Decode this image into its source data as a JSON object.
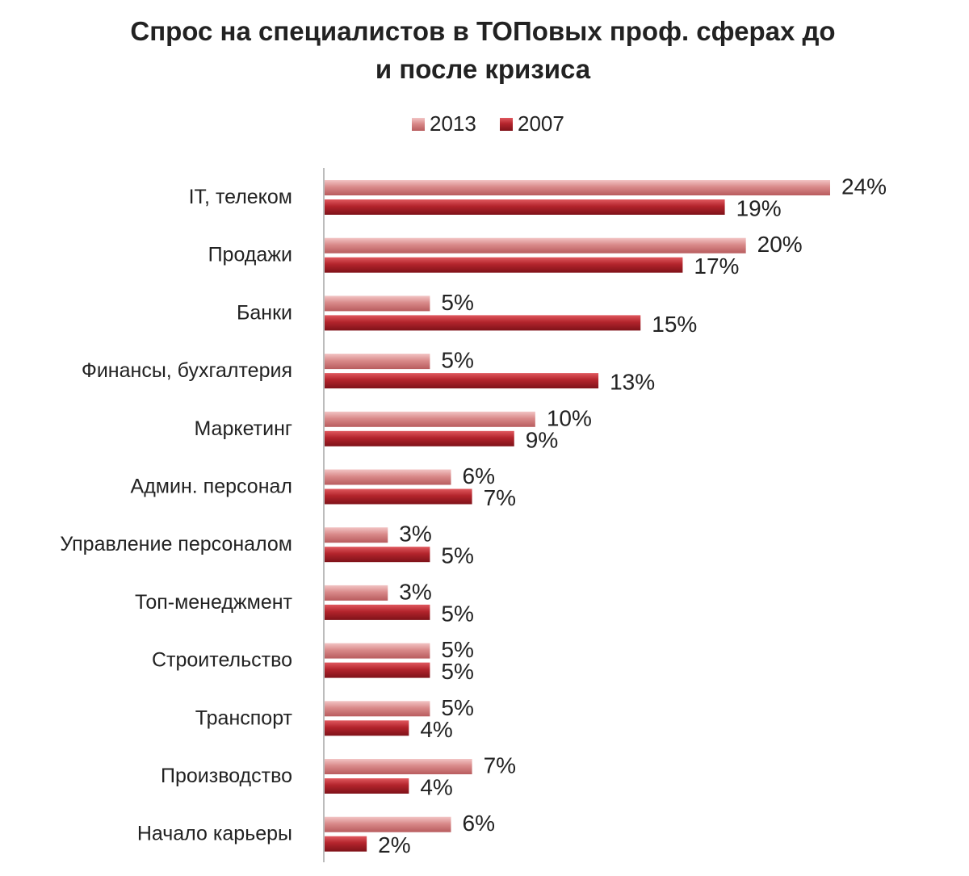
{
  "chart_data": {
    "type": "bar",
    "orientation": "horizontal",
    "title_lines": [
      "Спрос на специалистов в ТОПовых проф. сферах до",
      "и после кризиса"
    ],
    "xlabel": "",
    "ylabel": "",
    "xlim": [
      0,
      24
    ],
    "grid": false,
    "legend_position": "top",
    "categories": [
      "IT, телеком",
      "Продажи",
      "Банки",
      "Финансы, бухгалтерия",
      "Маркетинг",
      "Админ. персонал",
      "Управление персоналом",
      "Топ-менеджмент",
      "Строительство",
      "Транспорт",
      "Производство",
      "Начало карьеры"
    ],
    "series": [
      {
        "name": "2013",
        "color": "#d98a8a",
        "values": [
          24,
          20,
          5,
          5,
          10,
          6,
          3,
          3,
          5,
          5,
          7,
          6
        ],
        "labels": [
          "24%",
          "20%",
          "5%",
          "5%",
          "10%",
          "6%",
          "3%",
          "3%",
          "5%",
          "5%",
          "7%",
          "6%"
        ]
      },
      {
        "name": "2007",
        "color": "#b3242c",
        "values": [
          19,
          17,
          15,
          13,
          9,
          7,
          5,
          5,
          5,
          4,
          4,
          2
        ],
        "labels": [
          "19%",
          "17%",
          "15%",
          "13%",
          "9%",
          "7%",
          "5%",
          "5%",
          "5%",
          "4%",
          "4%",
          "2%"
        ]
      }
    ]
  }
}
